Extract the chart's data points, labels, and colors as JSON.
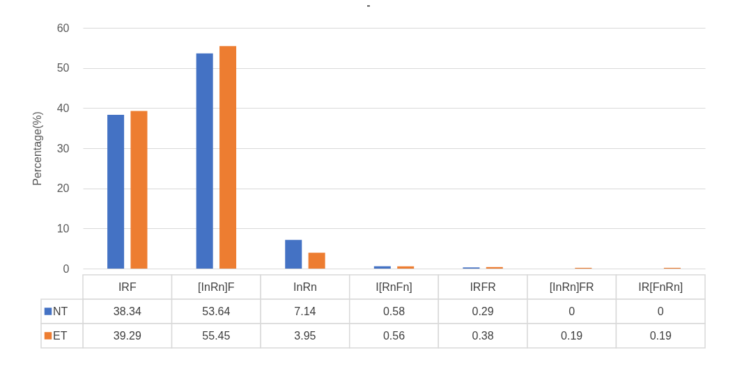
{
  "chart_data": {
    "type": "bar",
    "title": "-",
    "ylabel": "Percentage(%)",
    "categories": [
      "IRF",
      "[InRn]F",
      "InRn",
      "I[RnFn]",
      "IRFR",
      "[InRn]FR",
      "IR[FnRn]"
    ],
    "series": [
      {
        "name": "NT",
        "color": "#4472c4",
        "values": [
          38.34,
          53.64,
          7.14,
          0.58,
          0.29,
          0,
          0
        ]
      },
      {
        "name": "ET",
        "color": "#ed7d31",
        "values": [
          39.29,
          55.45,
          3.95,
          0.56,
          0.38,
          0.19,
          0.19
        ]
      }
    ],
    "ylim": [
      0,
      60
    ],
    "yticks": [
      0,
      10,
      20,
      30,
      40,
      50,
      60
    ],
    "grid": "y",
    "legend": "bottom",
    "data_labels": true
  }
}
